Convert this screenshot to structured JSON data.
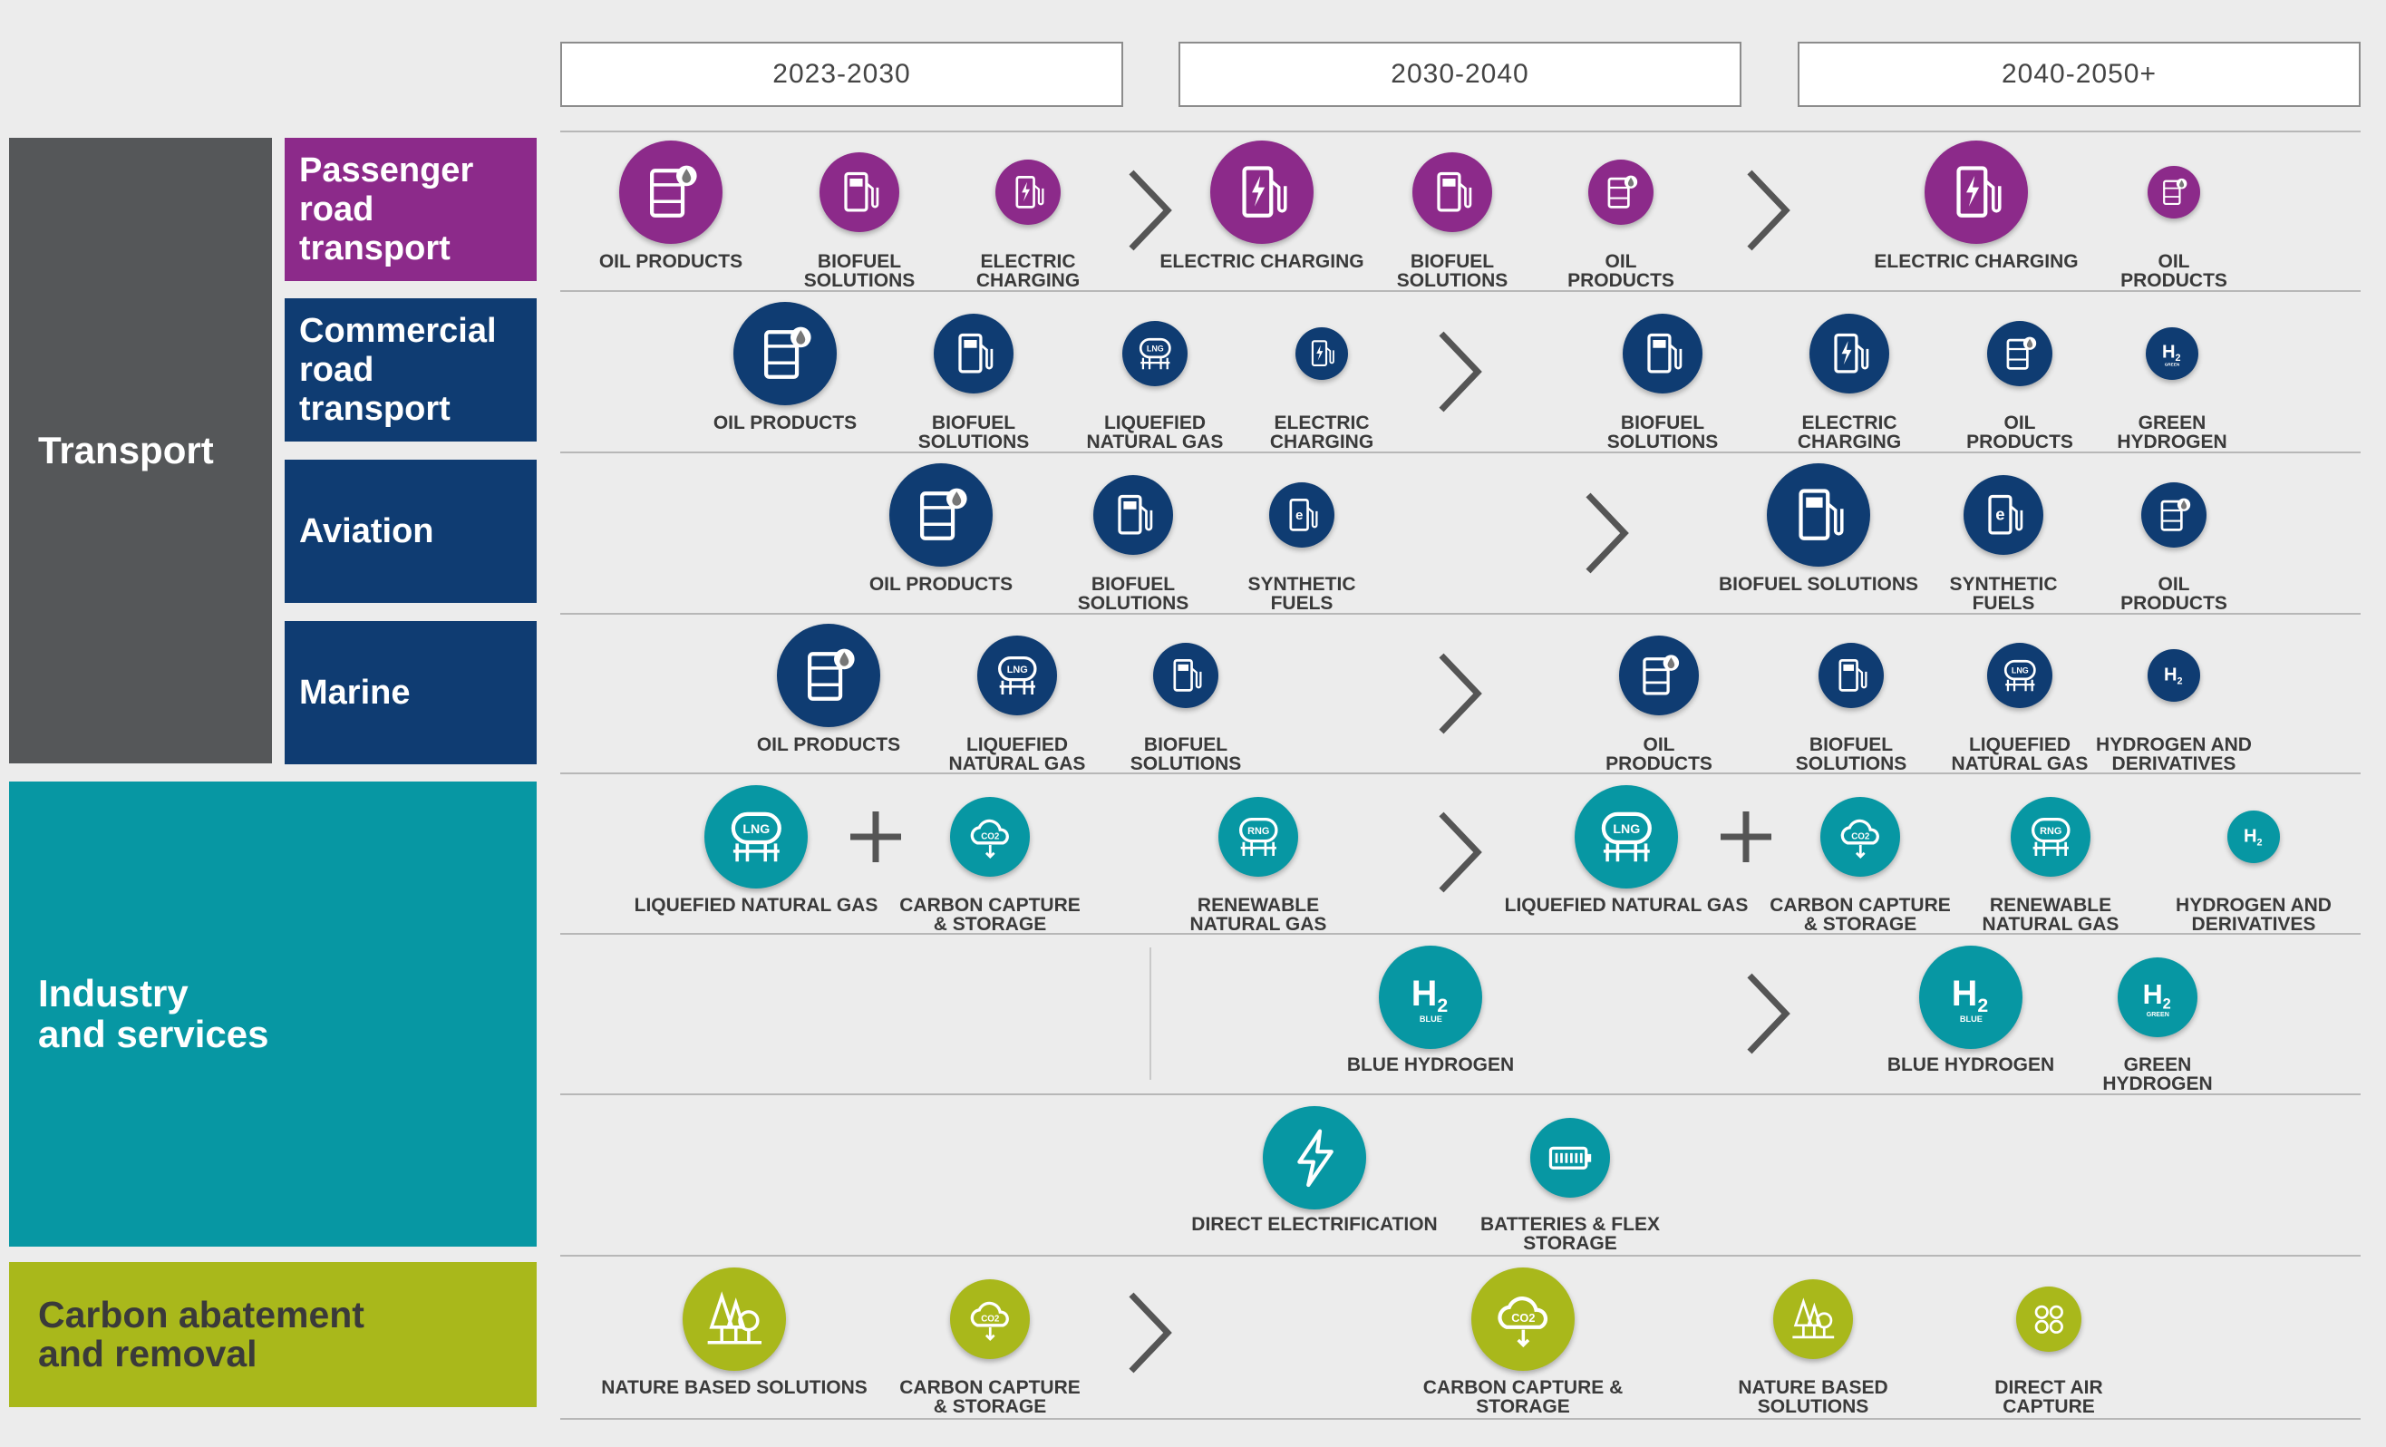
{
  "colors": {
    "transport_grey": "#555759",
    "passenger_purple": "#8c2a8a",
    "navy": "#0f3c72",
    "teal": "#0797a3",
    "lime": "#a9b81b",
    "background": "#ececec"
  },
  "periods": [
    "2023-2030",
    "2030-2040",
    "2040-2050+"
  ],
  "sectors": {
    "transport": "Transport",
    "industry": "Industry\nand services",
    "carbon": "Carbon abatement\nand removal"
  },
  "subsectors": {
    "passenger": "Passenger\nroad\ntransport",
    "commercial": "Commercial\nroad\ntransport",
    "aviation": "Aviation",
    "marine": "Marine"
  },
  "rows": {
    "passenger": [
      {
        "label": "OIL PRODUCTS",
        "icon": "oil-barrel-icon"
      },
      {
        "label": "BIOFUEL\nSOLUTIONS",
        "icon": "biofuel-pump-icon"
      },
      {
        "label": "ELECTRIC\nCHARGING",
        "icon": "electric-charger-icon"
      },
      {
        "label": "ELECTRIC CHARGING",
        "icon": "electric-charger-icon"
      },
      {
        "label": "BIOFUEL\nSOLUTIONS",
        "icon": "biofuel-pump-icon"
      },
      {
        "label": "OIL\nPRODUCTS",
        "icon": "oil-barrel-icon"
      },
      {
        "label": "ELECTRIC CHARGING",
        "icon": "electric-charger-icon"
      },
      {
        "label": "OIL\nPRODUCTS",
        "icon": "oil-barrel-icon"
      }
    ],
    "commercial": [
      {
        "label": "OIL PRODUCTS",
        "icon": "oil-barrel-icon"
      },
      {
        "label": "BIOFUEL\nSOLUTIONS",
        "icon": "biofuel-pump-icon"
      },
      {
        "label": "LIQUEFIED\nNATURAL GAS",
        "icon": "lng-tank-icon",
        "text": "LNG"
      },
      {
        "label": "ELECTRIC\nCHARGING",
        "icon": "electric-charger-icon"
      },
      {
        "label": "BIOFUEL\nSOLUTIONS",
        "icon": "biofuel-pump-icon"
      },
      {
        "label": "ELECTRIC\nCHARGING",
        "icon": "electric-charger-icon"
      },
      {
        "label": "OIL\nPRODUCTS",
        "icon": "oil-barrel-icon"
      },
      {
        "label": "GREEN\nHYDROGEN",
        "icon": "hydrogen-icon",
        "text": "H2",
        "sub": "GREEN"
      }
    ],
    "aviation": [
      {
        "label": "OIL PRODUCTS",
        "icon": "oil-barrel-icon"
      },
      {
        "label": "BIOFUEL\nSOLUTIONS",
        "icon": "biofuel-pump-icon"
      },
      {
        "label": "SYNTHETIC\nFUELS",
        "icon": "synthetic-fuel-icon"
      },
      {
        "label": "BIOFUEL SOLUTIONS",
        "icon": "biofuel-pump-icon"
      },
      {
        "label": "SYNTHETIC\nFUELS",
        "icon": "synthetic-fuel-icon"
      },
      {
        "label": "OIL\nPRODUCTS",
        "icon": "oil-barrel-icon"
      }
    ],
    "marine": [
      {
        "label": "OIL PRODUCTS",
        "icon": "oil-barrel-icon"
      },
      {
        "label": "LIQUEFIED\nNATURAL GAS",
        "icon": "lng-tank-icon",
        "text": "LNG"
      },
      {
        "label": "BIOFUEL\nSOLUTIONS",
        "icon": "biofuel-pump-icon"
      },
      {
        "label": "OIL\nPRODUCTS",
        "icon": "oil-barrel-icon"
      },
      {
        "label": "BIOFUEL\nSOLUTIONS",
        "icon": "biofuel-pump-icon"
      },
      {
        "label": "LIQUEFIED\nNATURAL GAS",
        "icon": "lng-tank-icon",
        "text": "LNG"
      },
      {
        "label": "HYDROGEN AND\nDERIVATIVES",
        "icon": "hydrogen-icon",
        "text": "H2"
      }
    ],
    "industry_gas": [
      {
        "label": "LIQUEFIED NATURAL GAS",
        "icon": "lng-tank-icon",
        "text": "LNG"
      },
      {
        "label": "CARBON CAPTURE\n& STORAGE",
        "icon": "co2-cloud-icon",
        "text": "CO2"
      },
      {
        "label": "RENEWABLE\nNATURAL GAS",
        "icon": "rng-tank-icon",
        "text": "RNG"
      },
      {
        "label": "LIQUEFIED NATURAL GAS",
        "icon": "lng-tank-icon",
        "text": "LNG"
      },
      {
        "label": "CARBON CAPTURE\n& STORAGE",
        "icon": "co2-cloud-icon",
        "text": "CO2"
      },
      {
        "label": "RENEWABLE\nNATURAL GAS",
        "icon": "rng-tank-icon",
        "text": "RNG"
      },
      {
        "label": "HYDROGEN AND\nDERIVATIVES",
        "icon": "hydrogen-icon",
        "text": "H2"
      }
    ],
    "industry_h2": [
      {
        "label": "BLUE HYDROGEN",
        "icon": "hydrogen-icon",
        "text": "H2",
        "sub": "BLUE"
      },
      {
        "label": "BLUE HYDROGEN",
        "icon": "hydrogen-icon",
        "text": "H2",
        "sub": "BLUE"
      },
      {
        "label": "GREEN\nHYDROGEN",
        "icon": "hydrogen-icon",
        "text": "H2",
        "sub": "GREEN"
      }
    ],
    "industry_elec": [
      {
        "label": "DIRECT ELECTRIFICATION",
        "icon": "lightning-icon"
      },
      {
        "label": "BATTERIES & FLEX\nSTORAGE",
        "icon": "battery-icon"
      }
    ],
    "carbon": [
      {
        "label": "NATURE BASED SOLUTIONS",
        "icon": "trees-icon"
      },
      {
        "label": "CARBON CAPTURE\n& STORAGE",
        "icon": "co2-cloud-icon",
        "text": "CO2"
      },
      {
        "label": "CARBON CAPTURE & STORAGE",
        "icon": "co2-cloud-icon",
        "text": "CO2"
      },
      {
        "label": "NATURE BASED\nSOLUTIONS",
        "icon": "trees-icon"
      },
      {
        "label": "DIRECT AIR\nCAPTURE",
        "icon": "direct-air-capture-icon"
      }
    ]
  }
}
